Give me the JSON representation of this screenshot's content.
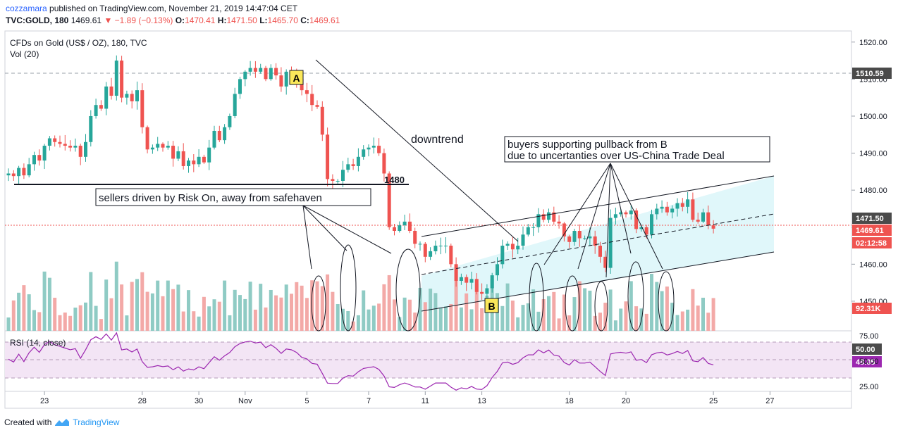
{
  "header": {
    "author": "cozzamara",
    "published_text": "published on TradingView.com, November 21, 2019 14:47:04 CET",
    "symbol": "TVC:GOLD, 180",
    "last": "1469.61",
    "change": "▼ −1.89 (−0.13%)",
    "o_label": "O:",
    "o_value": "1470.41",
    "h_label": "H:",
    "h_value": "1471.50",
    "l_label": "L:",
    "l_value": "1465.70",
    "c_label": "C:",
    "c_value": "1469.61"
  },
  "legend": {
    "instrument": "CFDs on Gold (US$ / OZ), 180, TVC",
    "volume": "Vol (20)",
    "rsi": "RSI (14, close)"
  },
  "price_badges": {
    "level_1510": "1510.59",
    "level_high": "1471.50",
    "last": "1469.61",
    "countdown": "02:12:58",
    "volume": "92.31K",
    "rsi_mid": "50.00",
    "rsi_value": "48.05"
  },
  "annotations": {
    "label_a": "A",
    "label_b": "B",
    "support_label": "1480",
    "downtrend": "downtrend",
    "sellers": "sellers driven by Risk On, away from safehaven",
    "buyers_line1": "buyers supporting pullback from B",
    "buyers_line2": "due to uncertanties over US-China Trade Deal"
  },
  "footer": {
    "created_with": "Created with",
    "brand": "TradingView"
  },
  "colors": {
    "up": "#26a69a",
    "down": "#ef5350",
    "up_volume": "#8fcbc4",
    "down_volume": "#f3a9a7",
    "channel_fill": "#e0f7fa",
    "rsi_band": "#f3e5f5",
    "rsi_line": "#9c27b0",
    "badge_dark": "#4a4a4a",
    "badge_red": "#ef5350",
    "badge_purple": "#9c27b0"
  },
  "chart_data": {
    "type": "candlestick",
    "title": "CFDs on Gold (US$ / OZ), 180, TVC",
    "price_axis": {
      "range": [
        1442,
        1523
      ],
      "ticks": [
        1450,
        1460,
        1470,
        1480,
        1490,
        1500,
        1510,
        1520
      ]
    },
    "rsi_axis": {
      "range": [
        20,
        80
      ],
      "ticks": [
        25,
        50,
        75
      ]
    },
    "x_ticks": [
      {
        "label": "23",
        "bar": 7
      },
      {
        "label": "28",
        "bar": 26
      },
      {
        "label": "30",
        "bar": 37
      },
      {
        "label": "Nov",
        "bar": 46
      },
      {
        "label": "5",
        "bar": 58
      },
      {
        "label": "7",
        "bar": 70
      },
      {
        "label": "11",
        "bar": 81
      },
      {
        "label": "13",
        "bar": 92
      },
      {
        "label": "18",
        "bar": 109
      },
      {
        "label": "20",
        "bar": 120
      },
      {
        "label": "25",
        "bar": 137
      },
      {
        "label": "27",
        "bar": 148
      }
    ],
    "close": [
      1484.5,
      1483.8,
      1486.0,
      1484.0,
      1487.0,
      1489.5,
      1488.0,
      1492.0,
      1494.0,
      1493.0,
      1492.5,
      1492.0,
      1491.5,
      1492.0,
      1489.0,
      1493.0,
      1500.0,
      1503.0,
      1502.0,
      1508.0,
      1505.5,
      1515.0,
      1505.0,
      1506.0,
      1504.0,
      1507.0,
      1497.0,
      1491.0,
      1491.5,
      1492.5,
      1491.5,
      1492.0,
      1488.5,
      1490.5,
      1486.5,
      1488.0,
      1487.0,
      1489.0,
      1487.5,
      1491.5,
      1496.0,
      1493.5,
      1497.0,
      1500.0,
      1506.0,
      1510.0,
      1512.0,
      1513.0,
      1512.0,
      1513.0,
      1510.0,
      1513.0,
      1511.0,
      1508.0,
      1512.0,
      1511.5,
      1510.0,
      1507.0,
      1506.0,
      1503.0,
      1502.5,
      1495.0,
      1483.0,
      1482.5,
      1482.5,
      1485.5,
      1487.0,
      1486.5,
      1489.0,
      1491.0,
      1491.5,
      1492.0,
      1490.0,
      1484.5,
      1470.0,
      1469.0,
      1470.5,
      1471.5,
      1469.0,
      1465.5,
      1465.5,
      1462.0,
      1463.5,
      1465.0,
      1465.0,
      1465.0,
      1460.0,
      1455.5,
      1456.5,
      1455.0,
      1456.0,
      1452.5,
      1452.0,
      1453.5,
      1457.0,
      1460.0,
      1465.0,
      1465.5,
      1464.0,
      1465.0,
      1468.0,
      1470.0,
      1470.0,
      1473.5,
      1472.0,
      1474.0,
      1471.5,
      1471.0,
      1467.5,
      1466.0,
      1469.0,
      1467.0,
      1467.0,
      1467.5,
      1465.0,
      1462.0,
      1459.0,
      1472.5,
      1473.5,
      1474.0,
      1473.5,
      1474.5,
      1469.5,
      1470.0,
      1468.0,
      1473.5,
      1475.0,
      1475.5,
      1474.0,
      1475.0,
      1476.5,
      1475.5,
      1477.5,
      1472.0,
      1471.5,
      1474.0,
      1470.5,
      1469.6
    ]
  }
}
